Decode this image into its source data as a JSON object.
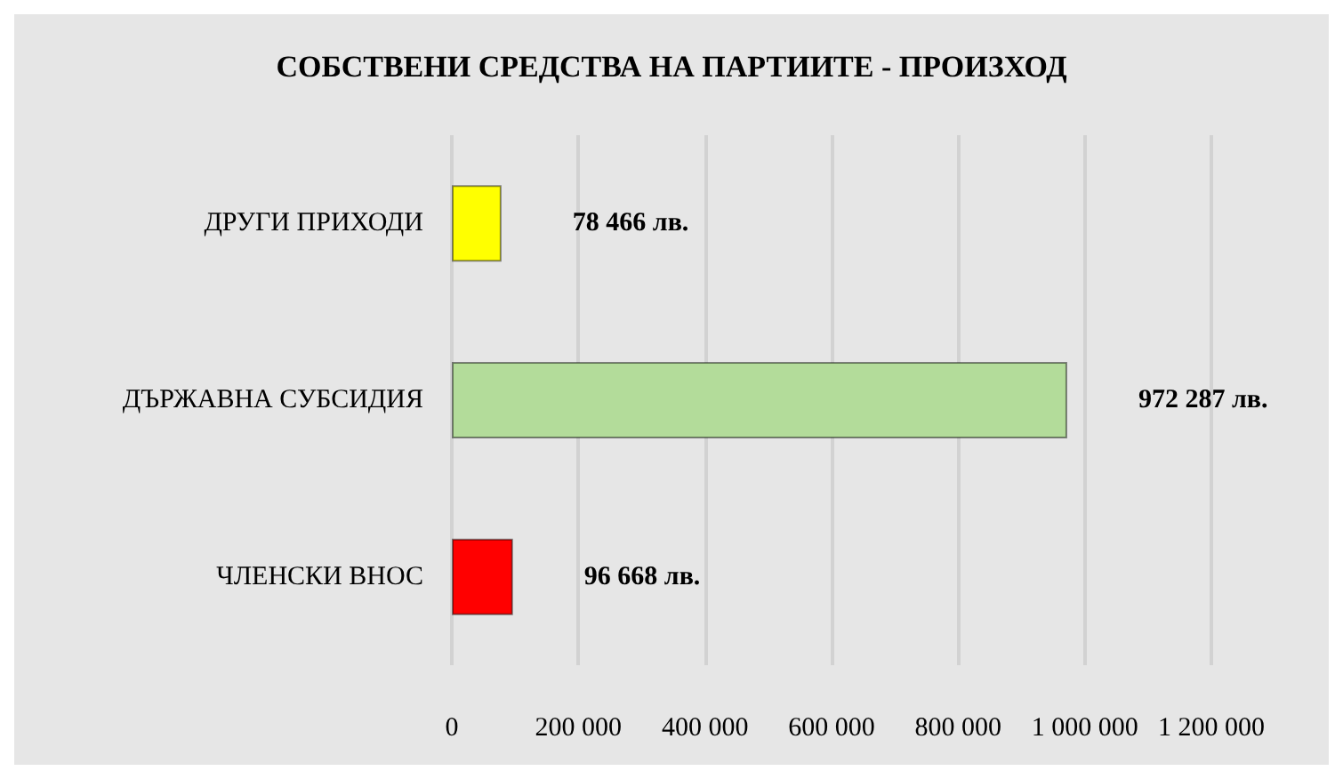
{
  "chart_data": {
    "type": "bar",
    "orientation": "horizontal",
    "title": "СОБСТВЕНИ СРЕДСТВА НА ПАРТИИТЕ - ПРОИЗХОД",
    "categories": [
      "ДРУГИ ПРИХОДИ",
      "ДЪРЖАВНА СУБСИДИЯ",
      "ЧЛЕНСКИ ВНОС"
    ],
    "values": [
      78466,
      972287,
      96668
    ],
    "colors": [
      "#ffff00",
      "#b3dc9a",
      "#ff0000"
    ],
    "value_labels": [
      "78 466 лв.",
      "972 287 лв.",
      "96 668 лв."
    ],
    "xlim": [
      0,
      1200000
    ],
    "xticks": [
      0,
      {
        "value": 200000,
        "label": "200 000"
      },
      {
        "value": 400000,
        "label": "400 000"
      },
      {
        "value": 600000,
        "label": "600 000"
      },
      {
        "value": 800000,
        "label": "800 000"
      },
      {
        "value": 1000000,
        "label": "1 000 000"
      },
      {
        "value": 1200000,
        "label": "1 200 000"
      }
    ],
    "grid": "x"
  }
}
